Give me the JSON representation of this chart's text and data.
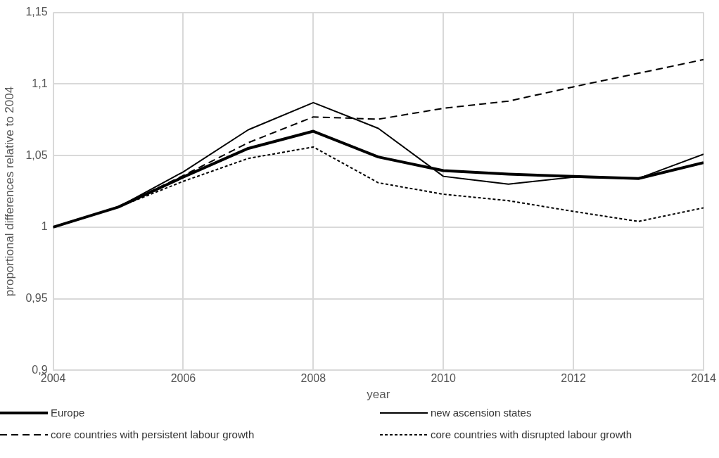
{
  "chart_data": {
    "type": "line",
    "xlabel": "year",
    "ylabel": "proportional differences relative to 2004",
    "x": [
      2004,
      2005,
      2006,
      2007,
      2008,
      2009,
      2010,
      2011,
      2012,
      2013,
      2014
    ],
    "xlim": [
      2004,
      2014
    ],
    "xticks": [
      2004,
      2006,
      2008,
      2010,
      2012,
      2014
    ],
    "ylim": [
      0.9,
      1.15
    ],
    "yticks": [
      {
        "value": 0.9,
        "label": "0,9"
      },
      {
        "value": 0.95,
        "label": "0,95"
      },
      {
        "value": 1,
        "label": "1"
      },
      {
        "value": 1.05,
        "label": "1,05"
      },
      {
        "value": 1.1,
        "label": "1,1"
      },
      {
        "value": 1.15,
        "label": "1,15"
      }
    ],
    "grid": true,
    "legend": "bottom",
    "marker": "none",
    "series": [
      {
        "name": "Europe",
        "color": "#000000",
        "line_style": "solid",
        "values": [
          1.0,
          1.014,
          1.035,
          1.055,
          1.067,
          1.049,
          1.0395,
          1.037,
          1.0355,
          1.034,
          1.045
        ]
      },
      {
        "name": "new ascension states",
        "color": "#000000",
        "line_style": "solid",
        "values": [
          1.0,
          1.014,
          1.0386,
          1.068,
          1.087,
          1.069,
          1.0355,
          1.03,
          1.035,
          1.034,
          1.051
        ]
      },
      {
        "name": "core countries with persistent labour growth",
        "color": "#000000",
        "line_style": "dashed",
        "values": [
          1.0,
          1.014,
          1.036,
          1.059,
          1.077,
          1.0754,
          1.083,
          1.088,
          1.098,
          1.1075,
          1.117
        ]
      },
      {
        "name": "core countries with disrupted labour growth",
        "color": "#000000",
        "line_style": "dotted",
        "values": [
          1.0,
          1.014,
          1.032,
          1.048,
          1.056,
          1.031,
          1.023,
          1.0185,
          1.011,
          1.004,
          1.0135
        ]
      }
    ]
  }
}
